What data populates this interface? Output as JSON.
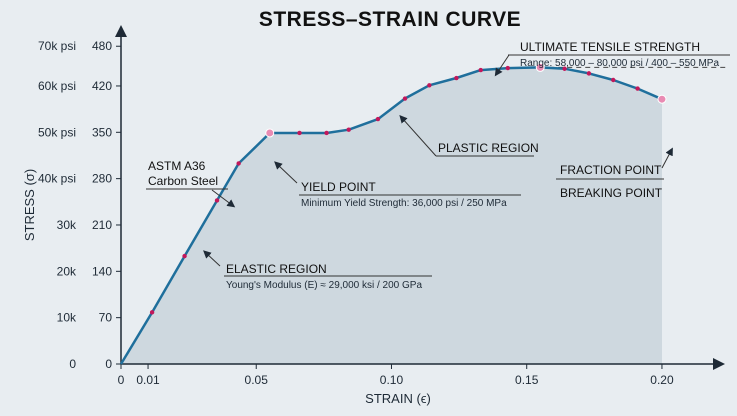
{
  "chart_data": {
    "type": "line",
    "title": "STRESS–STRAIN CURVE",
    "xlabel": "STRAIN (ϵ)",
    "ylabel": "STRESS (σ)",
    "xlim": [
      0,
      0.21
    ],
    "ylim": [
      0,
      500
    ],
    "x_ticks": [
      0,
      0.01,
      0.05,
      0.1,
      0.15,
      0.2
    ],
    "x_tick_labels": [
      "0",
      "0.01",
      "0.05",
      "0.10",
      "0.15",
      "0.20"
    ],
    "y_ticks": [
      0,
      70,
      140,
      210,
      280,
      350,
      420,
      480
    ],
    "y_tick_labels_mpa": [
      "0",
      "70",
      "140",
      "210",
      "280",
      "350",
      "420",
      "480"
    ],
    "y_tick_labels_psi": [
      "0",
      "10k",
      "20k",
      "30k",
      "40k psi",
      "50k psi",
      "60k psi",
      "70k psi"
    ],
    "series": [
      {
        "x": [
          0,
          0.0115,
          0.0235,
          0.0355,
          0.0435,
          0.055,
          0.066,
          0.076,
          0.0842,
          0.095,
          0.105,
          0.114,
          0.124,
          0.133,
          0.143,
          0.155,
          0.164,
          0.173,
          0.182,
          0.191,
          0.2
        ],
        "y": [
          0,
          78,
          163,
          247,
          303,
          349,
          349,
          349,
          354,
          370,
          401,
          421,
          432,
          444,
          447,
          448,
          446,
          439,
          429,
          416,
          400
        ]
      }
    ],
    "colors": {
      "curve": "#1f6f9c",
      "marker": "#c2185b",
      "fill": "#c9d3dc",
      "axis": "#1e2a36",
      "annotation_line": "#333333"
    },
    "annotations": {
      "material": [
        "ASTM A36",
        "Carbon Steel"
      ],
      "yield_point": {
        "title": "YIELD POINT",
        "sub": "Minimum Yield Strength: 36,000 psi / 250 MPa"
      },
      "elastic_region": {
        "title": "ELASTIC REGION",
        "sub": "Young's Modulus (E) ≈ 29,000 ksi / 200 GPa"
      },
      "plastic_region": {
        "title": "PLASTIC REGION"
      },
      "uts": {
        "title": "ULTIMATE TENSILE STRENGTH",
        "sub": "Range: 58,000 – 80,000 psi / 400 – 550 MPa"
      },
      "fraction_point": {
        "title": "FRACTION POINT"
      },
      "breaking_point": {
        "title": "BREAKING POINT"
      }
    }
  }
}
